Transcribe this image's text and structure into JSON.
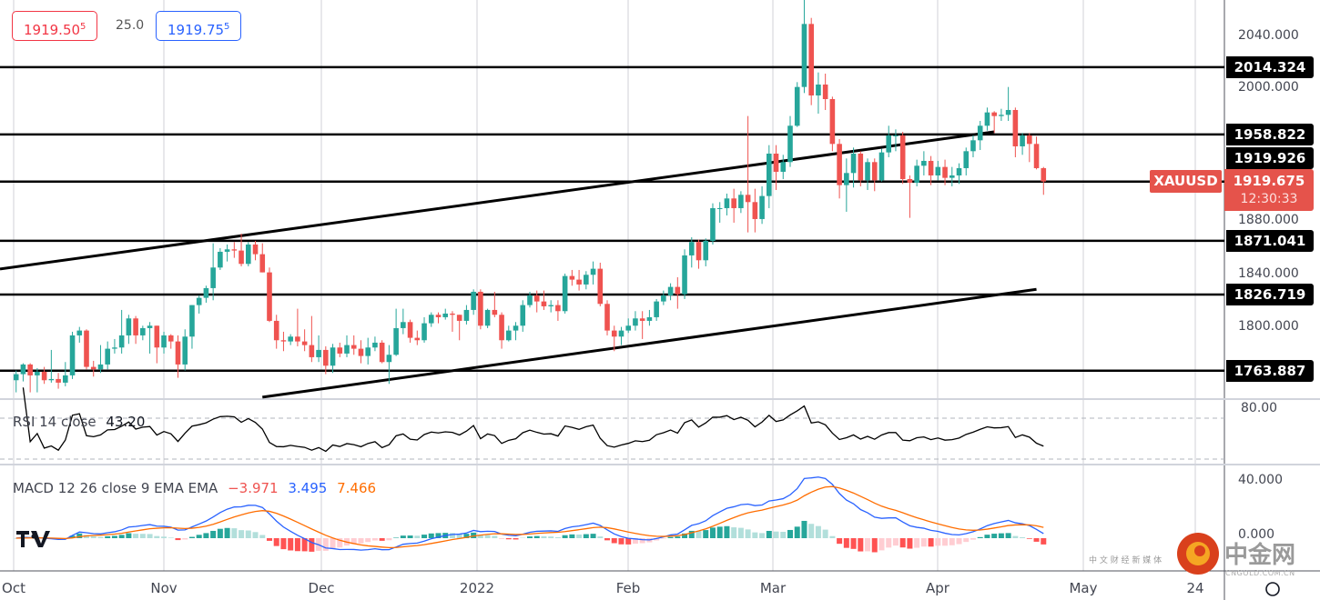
{
  "quote": {
    "bid": "1919.50",
    "bid_sup": "5",
    "spread": "25.0",
    "ask": "1919.75",
    "ask_sup": "5"
  },
  "symbol": {
    "name": "XAUUSD",
    "price": "1919.675",
    "countdown": "12:30:33"
  },
  "levels": [
    {
      "value": 2014.324,
      "label": "2014.324"
    },
    {
      "value": 1958.822,
      "label": "1958.822"
    },
    {
      "value": 1919.926,
      "label": "1919.926"
    },
    {
      "value": 1871.041,
      "label": "1871.041"
    },
    {
      "value": 1826.719,
      "label": "1826.719"
    },
    {
      "value": 1763.887,
      "label": "1763.887"
    }
  ],
  "rsi": {
    "label": "RSI 14 close",
    "value": "43.20",
    "tick": "80.00"
  },
  "macd": {
    "label": "MACD 12 26 close 9 EMA EMA",
    "hist": "−3.971",
    "macd": "3.495",
    "signal": "7.466",
    "ticks": [
      "40.000",
      "0.000"
    ]
  },
  "time_axis": [
    "Oct",
    "Nov",
    "Dec",
    "2022",
    "Feb",
    "Mar",
    "Apr",
    "May",
    "24"
  ],
  "watermark": {
    "brand": "中金网",
    "sub": "CNGOLD.COM.CN",
    "tagline": "中 文 财 经 新 媒 体"
  },
  "colors": {
    "up": "#26a69a",
    "down": "#ef5350",
    "macd": "#2962ff",
    "signal": "#ff6d00",
    "price_label": "#e5534b"
  },
  "chart_data": {
    "type": "candlestick",
    "symbol": "XAUUSD",
    "y_ticks": [
      "2040.000",
      "2000.000",
      "1880.000",
      "1840.000",
      "1800.000"
    ],
    "ylim": [
      1735,
      2070
    ],
    "trendlines": [
      {
        "points": [
          [
            "2021-10-01",
            1849.6
          ],
          [
            "2022-04-14",
            1961
          ]
        ],
        "extend_left": true
      },
      {
        "points": [
          [
            "2021-11-19",
            1742
          ],
          [
            "2022-04-22",
            1831
          ]
        ]
      }
    ],
    "candles": [
      [
        "2021-10-01",
        1756,
        1764,
        1746,
        1761
      ],
      [
        "2021-10-04",
        1761,
        1770,
        1755,
        1769
      ],
      [
        "2021-10-05",
        1769,
        1770,
        1746,
        1760
      ],
      [
        "2021-10-06",
        1760,
        1766,
        1746,
        1763
      ],
      [
        "2021-10-07",
        1763,
        1767,
        1753,
        1756
      ],
      [
        "2021-10-08",
        1756,
        1781,
        1754,
        1757
      ],
      [
        "2021-10-11",
        1757,
        1762,
        1749,
        1754
      ],
      [
        "2021-10-12",
        1754,
        1771,
        1751,
        1760
      ],
      [
        "2021-10-13",
        1760,
        1796,
        1757,
        1793
      ],
      [
        "2021-10-14",
        1793,
        1800,
        1787,
        1797
      ],
      [
        "2021-10-15",
        1797,
        1798,
        1765,
        1767
      ],
      [
        "2021-10-18",
        1767,
        1772,
        1759,
        1765
      ],
      [
        "2021-10-19",
        1765,
        1785,
        1762,
        1769
      ],
      [
        "2021-10-20",
        1769,
        1788,
        1765,
        1782
      ],
      [
        "2021-10-21",
        1782,
        1790,
        1778,
        1783
      ],
      [
        "2021-10-22",
        1783,
        1814,
        1778,
        1793
      ],
      [
        "2021-10-25",
        1793,
        1810,
        1786,
        1807
      ],
      [
        "2021-10-26",
        1807,
        1809,
        1786,
        1793
      ],
      [
        "2021-10-27",
        1793,
        1801,
        1789,
        1799
      ],
      [
        "2021-10-28",
        1799,
        1804,
        1778,
        1801
      ],
      [
        "2021-10-29",
        1801,
        1801,
        1770,
        1783
      ],
      [
        "2021-11-01",
        1783,
        1796,
        1778,
        1793
      ],
      [
        "2021-11-02",
        1793,
        1794,
        1782,
        1788
      ],
      [
        "2021-11-03",
        1788,
        1793,
        1758,
        1769
      ],
      [
        "2021-11-04",
        1769,
        1798,
        1764,
        1792
      ],
      [
        "2021-11-05",
        1792,
        1818,
        1782,
        1818
      ],
      [
        "2021-11-08",
        1818,
        1826,
        1811,
        1824
      ],
      [
        "2021-11-09",
        1824,
        1834,
        1820,
        1832
      ],
      [
        "2021-11-10",
        1832,
        1869,
        1822,
        1849
      ],
      [
        "2021-11-11",
        1849,
        1865,
        1847,
        1862
      ],
      [
        "2021-11-12",
        1862,
        1868,
        1854,
        1864
      ],
      [
        "2021-11-15",
        1864,
        1870,
        1857,
        1863
      ],
      [
        "2021-11-16",
        1863,
        1877,
        1850,
        1852
      ],
      [
        "2021-11-17",
        1852,
        1870,
        1850,
        1868
      ],
      [
        "2021-11-18",
        1868,
        1871,
        1855,
        1860
      ],
      [
        "2021-11-19",
        1860,
        1869,
        1845,
        1845
      ],
      [
        "2021-11-22",
        1845,
        1849,
        1804,
        1805
      ],
      [
        "2021-11-23",
        1805,
        1810,
        1782,
        1789
      ],
      [
        "2021-11-24",
        1789,
        1796,
        1780,
        1788
      ],
      [
        "2021-11-25",
        1788,
        1794,
        1785,
        1792
      ],
      [
        "2021-11-26",
        1792,
        1815,
        1784,
        1788
      ],
      [
        "2021-11-29",
        1788,
        1798,
        1780,
        1785
      ],
      [
        "2021-11-30",
        1785,
        1809,
        1771,
        1775
      ],
      [
        "2021-12-01",
        1775,
        1793,
        1771,
        1781
      ],
      [
        "2021-12-02",
        1781,
        1784,
        1761,
        1768
      ],
      [
        "2021-12-03",
        1768,
        1786,
        1762,
        1783
      ],
      [
        "2021-12-06",
        1783,
        1787,
        1775,
        1778
      ],
      [
        "2021-12-07",
        1778,
        1793,
        1775,
        1785
      ],
      [
        "2021-12-08",
        1785,
        1793,
        1777,
        1782
      ],
      [
        "2021-12-09",
        1782,
        1789,
        1770,
        1776
      ],
      [
        "2021-12-10",
        1776,
        1791,
        1769,
        1783
      ],
      [
        "2021-12-13",
        1783,
        1792,
        1780,
        1787
      ],
      [
        "2021-12-14",
        1787,
        1789,
        1770,
        1771
      ],
      [
        "2021-12-15",
        1771,
        1785,
        1753,
        1777
      ],
      [
        "2021-12-16",
        1777,
        1815,
        1776,
        1799
      ],
      [
        "2021-12-17",
        1799,
        1815,
        1794,
        1804
      ],
      [
        "2021-12-20",
        1804,
        1806,
        1787,
        1791
      ],
      [
        "2021-12-21",
        1791,
        1797,
        1785,
        1789
      ],
      [
        "2021-12-22",
        1789,
        1808,
        1787,
        1803
      ],
      [
        "2021-12-23",
        1803,
        1812,
        1800,
        1810
      ],
      [
        "2021-12-24",
        1810,
        1812,
        1803,
        1808
      ],
      [
        "2021-12-27",
        1808,
        1815,
        1806,
        1811
      ],
      [
        "2021-12-28",
        1811,
        1813,
        1796,
        1810
      ],
      [
        "2021-12-29",
        1810,
        1810,
        1789,
        1805
      ],
      [
        "2021-12-30",
        1805,
        1818,
        1802,
        1814
      ],
      [
        "2021-12-31",
        1814,
        1831,
        1810,
        1829
      ],
      [
        "2022-01-03",
        1829,
        1831,
        1798,
        1801
      ],
      [
        "2022-01-04",
        1801,
        1815,
        1799,
        1814
      ],
      [
        "2022-01-05",
        1814,
        1829,
        1808,
        1810
      ],
      [
        "2022-01-06",
        1810,
        1812,
        1782,
        1789
      ],
      [
        "2022-01-07",
        1789,
        1801,
        1788,
        1797
      ],
      [
        "2022-01-10",
        1797,
        1804,
        1789,
        1801
      ],
      [
        "2022-01-11",
        1801,
        1822,
        1796,
        1818
      ],
      [
        "2022-01-12",
        1818,
        1829,
        1816,
        1826
      ],
      [
        "2022-01-13",
        1826,
        1830,
        1812,
        1821
      ],
      [
        "2022-01-14",
        1821,
        1830,
        1814,
        1817
      ],
      [
        "2022-01-17",
        1817,
        1822,
        1812,
        1818
      ],
      [
        "2022-01-18",
        1818,
        1822,
        1805,
        1813
      ],
      [
        "2022-01-19",
        1813,
        1844,
        1811,
        1842
      ],
      [
        "2022-01-20",
        1842,
        1847,
        1834,
        1839
      ],
      [
        "2022-01-21",
        1839,
        1847,
        1830,
        1835
      ],
      [
        "2022-01-24",
        1835,
        1846,
        1831,
        1843
      ],
      [
        "2022-01-25",
        1843,
        1854,
        1835,
        1848
      ],
      [
        "2022-01-26",
        1848,
        1853,
        1817,
        1819
      ],
      [
        "2022-01-27",
        1819,
        1822,
        1793,
        1797
      ],
      [
        "2022-01-28",
        1797,
        1801,
        1780,
        1792
      ],
      [
        "2022-01-31",
        1792,
        1800,
        1785,
        1797
      ],
      [
        "2022-02-01",
        1797,
        1807,
        1795,
        1801
      ],
      [
        "2022-02-02",
        1801,
        1813,
        1797,
        1807
      ],
      [
        "2022-02-03",
        1807,
        1813,
        1790,
        1805
      ],
      [
        "2022-02-04",
        1805,
        1814,
        1801,
        1808
      ],
      [
        "2022-02-07",
        1808,
        1823,
        1805,
        1821
      ],
      [
        "2022-02-08",
        1821,
        1830,
        1818,
        1826
      ],
      [
        "2022-02-09",
        1826,
        1836,
        1822,
        1833
      ],
      [
        "2022-02-10",
        1833,
        1841,
        1815,
        1827
      ],
      [
        "2022-02-11",
        1827,
        1864,
        1823,
        1859
      ],
      [
        "2022-02-14",
        1859,
        1874,
        1849,
        1870
      ],
      [
        "2022-02-15",
        1870,
        1872,
        1848,
        1855
      ],
      [
        "2022-02-16",
        1855,
        1873,
        1850,
        1871
      ],
      [
        "2022-02-17",
        1871,
        1902,
        1868,
        1898
      ],
      [
        "2022-02-18",
        1898,
        1903,
        1886,
        1898
      ],
      [
        "2022-02-21",
        1898,
        1910,
        1892,
        1906
      ],
      [
        "2022-02-22",
        1906,
        1914,
        1886,
        1898
      ],
      [
        "2022-02-23",
        1898,
        1912,
        1894,
        1909
      ],
      [
        "2022-02-24",
        1909,
        1974,
        1878,
        1903
      ],
      [
        "2022-02-25",
        1903,
        1914,
        1878,
        1889
      ],
      [
        "2022-02-28",
        1889,
        1916,
        1885,
        1908
      ],
      [
        "2022-03-01",
        1908,
        1950,
        1898,
        1943
      ],
      [
        "2022-03-02",
        1943,
        1950,
        1913,
        1928
      ],
      [
        "2022-03-03",
        1928,
        1942,
        1922,
        1936
      ],
      [
        "2022-03-04",
        1936,
        1974,
        1932,
        1966
      ],
      [
        "2022-03-07",
        1966,
        2002,
        1965,
        1998
      ],
      [
        "2022-03-08",
        1998,
        2070,
        1993,
        2050
      ],
      [
        "2022-03-09",
        2050,
        2055,
        1983,
        1991
      ],
      [
        "2022-03-10",
        1991,
        2010,
        1976,
        2000
      ],
      [
        "2022-03-11",
        2000,
        2009,
        1979,
        1988
      ],
      [
        "2022-03-14",
        1988,
        1990,
        1945,
        1951
      ],
      [
        "2022-03-15",
        1951,
        1955,
        1906,
        1917
      ],
      [
        "2022-03-16",
        1917,
        1939,
        1895,
        1927
      ],
      [
        "2022-03-17",
        1927,
        1948,
        1915,
        1943
      ],
      [
        "2022-03-18",
        1943,
        1945,
        1916,
        1921
      ],
      [
        "2022-03-21",
        1921,
        1939,
        1913,
        1936
      ],
      [
        "2022-03-22",
        1936,
        1939,
        1912,
        1921
      ],
      [
        "2022-03-23",
        1921,
        1947,
        1920,
        1944
      ],
      [
        "2022-03-24",
        1944,
        1966,
        1940,
        1958
      ],
      [
        "2022-03-25",
        1958,
        1963,
        1945,
        1958
      ],
      [
        "2022-03-28",
        1958,
        1961,
        1918,
        1922
      ],
      [
        "2022-03-29",
        1922,
        1925,
        1890,
        1919
      ],
      [
        "2022-03-30",
        1919,
        1938,
        1916,
        1933
      ],
      [
        "2022-03-31",
        1933,
        1945,
        1925,
        1937
      ],
      [
        "2022-04-01",
        1937,
        1941,
        1917,
        1925
      ],
      [
        "2022-04-04",
        1925,
        1937,
        1921,
        1932
      ],
      [
        "2022-04-05",
        1932,
        1938,
        1917,
        1923
      ],
      [
        "2022-04-06",
        1923,
        1932,
        1916,
        1925
      ],
      [
        "2022-04-07",
        1925,
        1935,
        1918,
        1931
      ],
      [
        "2022-04-08",
        1931,
        1948,
        1925,
        1945
      ],
      [
        "2022-04-11",
        1945,
        1958,
        1940,
        1954
      ],
      [
        "2022-04-12",
        1954,
        1970,
        1946,
        1966
      ],
      [
        "2022-04-13",
        1966,
        1981,
        1962,
        1977
      ],
      [
        "2022-04-14",
        1977,
        1978,
        1960,
        1974
      ],
      [
        "2022-04-15",
        1974,
        1980,
        1970,
        1975
      ],
      [
        "2022-04-18",
        1975,
        1998,
        1970,
        1979
      ],
      [
        "2022-04-19",
        1979,
        1981,
        1940,
        1949
      ],
      [
        "2022-04-20",
        1949,
        1960,
        1942,
        1958
      ],
      [
        "2022-04-21",
        1958,
        1960,
        1936,
        1951
      ],
      [
        "2022-04-22",
        1951,
        1957,
        1930,
        1931
      ],
      [
        "2022-04-25",
        1931,
        1932,
        1909,
        1920
      ]
    ]
  }
}
